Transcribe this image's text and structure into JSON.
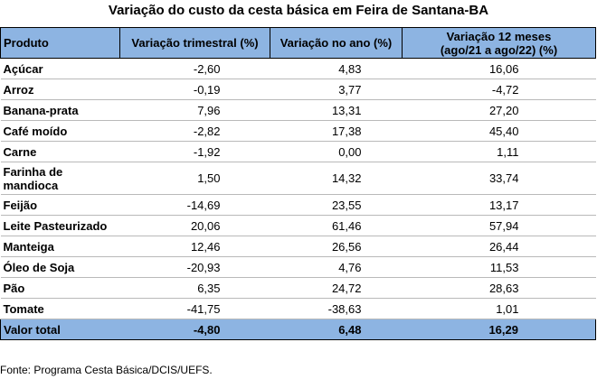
{
  "title": "Variação do custo da cesta básica em Feira de Santana-BA",
  "source": "Fonte: Programa Cesta Básica/DCIS/UEFS.",
  "chart_data": {
    "type": "table",
    "title": "Variação do custo da cesta básica em Feira de Santana-BA",
    "columns": [
      "Produto",
      "Variação trimestral (%)",
      "Variação no ano (%)",
      "Variação 12 meses (ago/21 a ago/22) (%)"
    ],
    "header_line2": "(ago/21 a ago/22) (%)",
    "header_line1": "Variação 12 meses",
    "rows": [
      {
        "produto": "Açúcar",
        "trimestral": "-2,60",
        "ano": "4,83",
        "doze": "16,06"
      },
      {
        "produto": "Arroz",
        "trimestral": "-0,19",
        "ano": "3,77",
        "doze": "-4,72"
      },
      {
        "produto": "Banana-prata",
        "trimestral": "7,96",
        "ano": "13,31",
        "doze": "27,20"
      },
      {
        "produto": "Café moído",
        "trimestral": "-2,82",
        "ano": "17,38",
        "doze": "45,40"
      },
      {
        "produto": "Carne",
        "trimestral": "-1,92",
        "ano": "0,00",
        "doze": "1,11"
      },
      {
        "produto": "Farinha de mandioca",
        "trimestral": "1,50",
        "ano": "14,32",
        "doze": "33,74"
      },
      {
        "produto": "Feijão",
        "trimestral": "-14,69",
        "ano": "23,55",
        "doze": "13,17"
      },
      {
        "produto": "Leite Pasteurizado",
        "trimestral": "20,06",
        "ano": "61,46",
        "doze": "57,94"
      },
      {
        "produto": "Manteiga",
        "trimestral": "12,46",
        "ano": "26,56",
        "doze": "26,44"
      },
      {
        "produto": "Óleo de Soja",
        "trimestral": "-20,93",
        "ano": "4,76",
        "doze": "11,53"
      },
      {
        "produto": "Pão",
        "trimestral": "6,35",
        "ano": "24,72",
        "doze": "28,63"
      },
      {
        "produto": "Tomate",
        "trimestral": "-41,75",
        "ano": "-38,63",
        "doze": "1,01"
      }
    ],
    "total": {
      "produto": "Valor total",
      "trimestral": "-4,80",
      "ano": "6,48",
      "doze": "16,29"
    }
  }
}
